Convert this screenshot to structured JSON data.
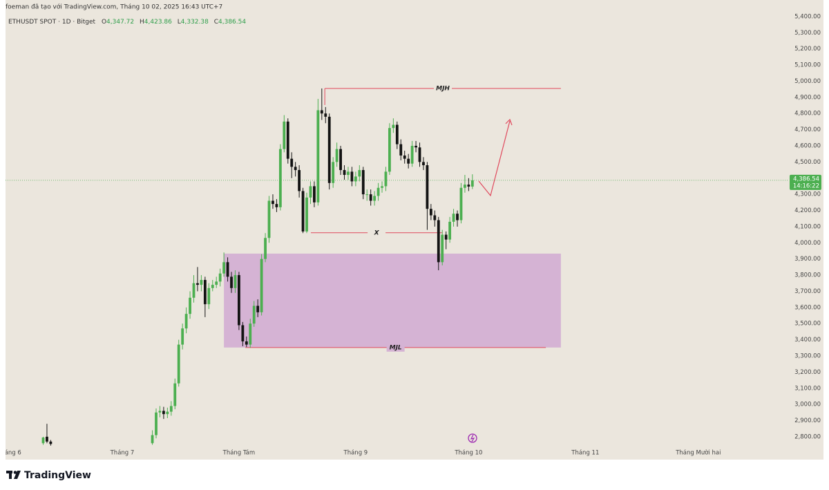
{
  "header": {
    "credit": "foeman đã tạo với TradingView.com, Tháng 10 02, 2025 16:43 UTC+7"
  },
  "footer": {
    "brand": "TradingView"
  },
  "chart_data": {
    "type": "candlestick",
    "symbol": "ETHUSDT SPOT · 1D · Bitget",
    "ohlc_legend": [
      {
        "key": "O",
        "label": "4,347.72"
      },
      {
        "key": "H",
        "label": "4,423.86"
      },
      {
        "key": "L",
        "label": "4,332.38"
      },
      {
        "key": "C",
        "label": "4,386.54"
      }
    ],
    "up_color": "#4caf50",
    "down_color": "#131313",
    "x": [
      9,
      10,
      11,
      38,
      39,
      40,
      41,
      42,
      43,
      44,
      45,
      46,
      47,
      48,
      49,
      50,
      51,
      52,
      53,
      54,
      55,
      56,
      57,
      58,
      59,
      60,
      61,
      62,
      63,
      64,
      65,
      66,
      67,
      68,
      69,
      70,
      71,
      72,
      73,
      74,
      75,
      76,
      77,
      78,
      79,
      80,
      81,
      82,
      83,
      84,
      85,
      86,
      87,
      88,
      89,
      90,
      91,
      92,
      93,
      94,
      95,
      96,
      97,
      98,
      99,
      100,
      101,
      102,
      103,
      104,
      105,
      106,
      107,
      108,
      109,
      110,
      111,
      112,
      113,
      114,
      115,
      116,
      117,
      118,
      119,
      120,
      121,
      122,
      123
    ],
    "open": [
      2760,
      2800,
      2770,
      2760,
      2810,
      2950,
      2960,
      2940,
      2955,
      2990,
      3130,
      3370,
      3470,
      3560,
      3660,
      3750,
      3740,
      3770,
      3620,
      3720,
      3740,
      3760,
      3810,
      3880,
      3790,
      3720,
      3800,
      3490,
      3390,
      3370,
      3500,
      3610,
      3570,
      3900,
      4030,
      4260,
      4240,
      4220,
      4580,
      4750,
      4520,
      4470,
      4450,
      4320,
      4070,
      4280,
      4350,
      4250,
      4820,
      4800,
      4780,
      4370,
      4500,
      4580,
      4450,
      4420,
      4440,
      4380,
      4410,
      4450,
      4300,
      4300,
      4260,
      4290,
      4340,
      4350,
      4440,
      4710,
      4730,
      4610,
      4540,
      4520,
      4490,
      4600,
      4590,
      4500,
      4480,
      4210,
      4170,
      4140,
      3880,
      4050,
      4020,
      4130,
      4180,
      4140,
      4340,
      4360,
      4347.72
    ],
    "high": [
      2800,
      2880,
      2780,
      2840,
      2975,
      2990,
      2985,
      2980,
      3020,
      3160,
      3400,
      3500,
      3600,
      3700,
      3800,
      3850,
      3800,
      3790,
      3750,
      3770,
      3790,
      3840,
      3940,
      3910,
      3820,
      3830,
      3820,
      3510,
      3420,
      3530,
      3640,
      3650,
      3930,
      4060,
      4290,
      4300,
      4270,
      4610,
      4790,
      4770,
      4560,
      4500,
      4480,
      4340,
      4310,
      4380,
      4380,
      4890,
      4955,
      4840,
      4800,
      4530,
      4620,
      4600,
      4480,
      4470,
      4470,
      4440,
      4480,
      4470,
      4330,
      4330,
      4320,
      4370,
      4380,
      4470,
      4740,
      4770,
      4750,
      4640,
      4570,
      4550,
      4630,
      4630,
      4620,
      4530,
      4500,
      4240,
      4200,
      4160,
      4080,
      4070,
      4160,
      4210,
      4200,
      4370,
      4420,
      4400,
      4423.86
    ],
    "low": [
      2750,
      2760,
      2745,
      2750,
      2790,
      2920,
      2910,
      2915,
      2930,
      2970,
      3110,
      3340,
      3440,
      3530,
      3630,
      3700,
      3700,
      3540,
      3590,
      3700,
      3720,
      3730,
      3790,
      3760,
      3690,
      3690,
      3460,
      3360,
      3355,
      3350,
      3480,
      3540,
      3550,
      3880,
      4000,
      4210,
      4190,
      4200,
      4560,
      4490,
      4400,
      4410,
      4280,
      4060,
      4060,
      4240,
      4220,
      4230,
      4760,
      4740,
      4330,
      4340,
      4470,
      4420,
      4390,
      4390,
      4350,
      4350,
      4380,
      4270,
      4260,
      4230,
      4230,
      4260,
      4310,
      4320,
      4420,
      4680,
      4580,
      4510,
      4490,
      4460,
      4470,
      4560,
      4470,
      4450,
      4080,
      4140,
      4100,
      3830,
      3860,
      3960,
      4000,
      4100,
      4100,
      4120,
      4310,
      4320,
      4332.38
    ],
    "close": [
      2795,
      2770,
      2755,
      2810,
      2950,
      2960,
      2940,
      2955,
      2990,
      3130,
      3370,
      3470,
      3560,
      3660,
      3750,
      3740,
      3770,
      3620,
      3720,
      3740,
      3760,
      3810,
      3880,
      3790,
      3720,
      3800,
      3490,
      3390,
      3370,
      3500,
      3610,
      3570,
      3900,
      4030,
      4260,
      4240,
      4220,
      4580,
      4750,
      4520,
      4470,
      4450,
      4320,
      4070,
      4280,
      4350,
      4250,
      4820,
      4800,
      4780,
      4370,
      4500,
      4580,
      4450,
      4420,
      4440,
      4380,
      4410,
      4450,
      4300,
      4300,
      4260,
      4290,
      4340,
      4350,
      4440,
      4710,
      4730,
      4610,
      4540,
      4520,
      4490,
      4600,
      4590,
      4500,
      4480,
      4210,
      4170,
      4140,
      3880,
      4050,
      4020,
      4130,
      4180,
      4140,
      4340,
      4360,
      4347.72,
      4386.54
    ],
    "xlim": [
      -1,
      206.7
    ],
    "xticks": [
      {
        "value": 0,
        "label": "Tháng 6"
      },
      {
        "value": 30,
        "label": "Tháng 7"
      },
      {
        "value": 61,
        "label": "Tháng Tám"
      },
      {
        "value": 92,
        "label": "Tháng 9"
      },
      {
        "value": 122,
        "label": "Tháng 10"
      },
      {
        "value": 153,
        "label": "Tháng 11"
      },
      {
        "value": 183,
        "label": "Tháng Mười hai"
      }
    ],
    "ylim": [
      2744,
      5468
    ],
    "yticks": [
      {
        "value": 2800,
        "label": "2,800.00"
      },
      {
        "value": 2900,
        "label": "2,900.00"
      },
      {
        "value": 3000,
        "label": "3,000.00"
      },
      {
        "value": 3100,
        "label": "3,100.00"
      },
      {
        "value": 3200,
        "label": "3,200.00"
      },
      {
        "value": 3300,
        "label": "3,300.00"
      },
      {
        "value": 3400,
        "label": "3,400.00"
      },
      {
        "value": 3500,
        "label": "3,500.00"
      },
      {
        "value": 3600,
        "label": "3,600.00"
      },
      {
        "value": 3700,
        "label": "3,700.00"
      },
      {
        "value": 3800,
        "label": "3,800.00"
      },
      {
        "value": 3900,
        "label": "3,900.00"
      },
      {
        "value": 4000,
        "label": "4,000.00"
      },
      {
        "value": 4100,
        "label": "4,100.00"
      },
      {
        "value": 4200,
        "label": "4,200.00"
      },
      {
        "value": 4300,
        "label": "4,300.00"
      },
      {
        "value": 4400,
        "label": "4,400.00"
      },
      {
        "value": 4500,
        "label": "4,500.00"
      },
      {
        "value": 4600,
        "label": "4,600.00"
      },
      {
        "value": 4700,
        "label": "4,700.00"
      },
      {
        "value": 4800,
        "label": "4,800.00"
      },
      {
        "value": 4900,
        "label": "4,900.00"
      },
      {
        "value": 5000,
        "label": "5,000.00"
      },
      {
        "value": 5100,
        "label": "5,100.00"
      },
      {
        "value": 5200,
        "label": "5,200.00"
      },
      {
        "value": 5300,
        "label": "5,300.00"
      },
      {
        "value": 5400,
        "label": "5,400.00"
      }
    ],
    "grid": false,
    "last_price": {
      "value": 4386.54,
      "label": "4,386.54",
      "countdown": "14:16:22"
    },
    "zone": {
      "high": 3933,
      "low": 3352,
      "x": [
        57,
        146.5
      ],
      "color": "#d5b3d4"
    },
    "level_color": "#e0485c",
    "levels": [
      {
        "text": "MJH",
        "value": 4955,
        "x": [
          83.8,
          146.5
        ]
      },
      {
        "text": "X",
        "value": 4062,
        "x": [
          80.1,
          115
        ]
      },
      {
        "text": "MJL",
        "value": 3352,
        "x": [
          62.7,
          142.5
        ]
      }
    ]
  }
}
